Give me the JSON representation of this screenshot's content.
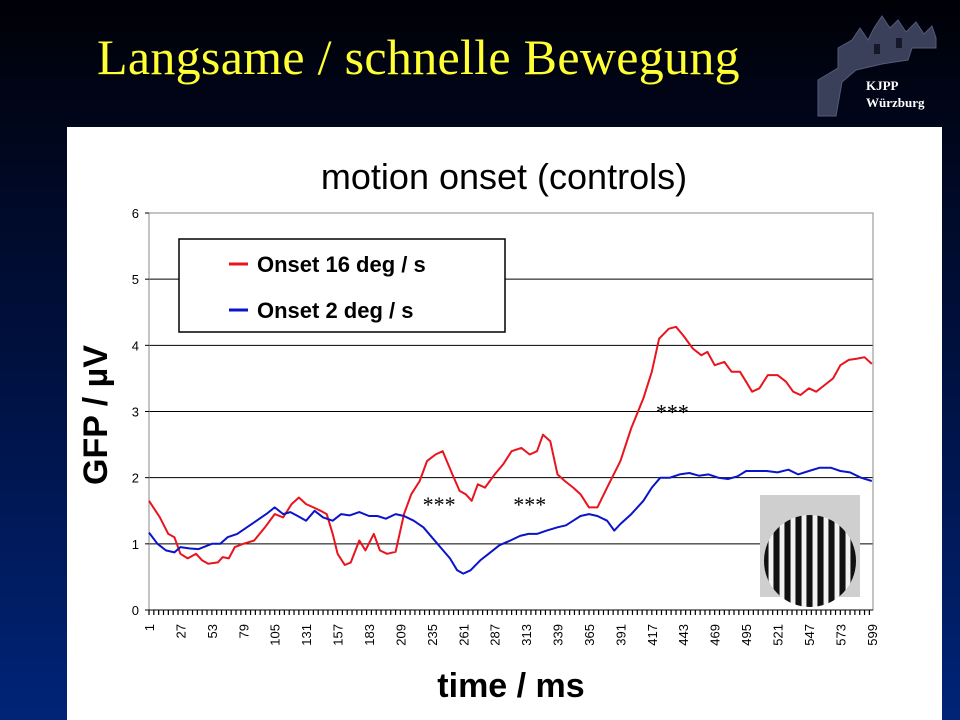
{
  "slide": {
    "title": "Langsame / schnelle Bewegung",
    "logo": {
      "line1": "KJPP",
      "line2": "Würzburg",
      "icon": "castle-logo-icon"
    }
  },
  "chart_data": {
    "type": "line",
    "title": "motion onset (controls)",
    "xlabel": "time / ms",
    "ylabel": "GFP / µV",
    "xlim": [
      1,
      600
    ],
    "ylim": [
      0,
      6
    ],
    "yticks": [
      0,
      1,
      2,
      3,
      4,
      5,
      6
    ],
    "xtick_labels": [
      1,
      27,
      53,
      79,
      105,
      131,
      157,
      183,
      209,
      235,
      261,
      287,
      313,
      339,
      365,
      391,
      417,
      443,
      469,
      495,
      521,
      547,
      573,
      599
    ],
    "grid": "horizontal",
    "legend_position": "top-left",
    "series": [
      {
        "name": "Onset 16 deg / s",
        "color": "#e8141e",
        "points": [
          [
            1,
            1.65
          ],
          [
            10,
            1.4
          ],
          [
            17,
            1.15
          ],
          [
            22,
            1.1
          ],
          [
            27,
            0.85
          ],
          [
            33,
            0.78
          ],
          [
            40,
            0.85
          ],
          [
            45,
            0.75
          ],
          [
            50,
            0.7
          ],
          [
            58,
            0.72
          ],
          [
            62,
            0.8
          ],
          [
            67,
            0.78
          ],
          [
            72,
            0.95
          ],
          [
            79,
            1.0
          ],
          [
            88,
            1.05
          ],
          [
            97,
            1.25
          ],
          [
            105,
            1.45
          ],
          [
            112,
            1.4
          ],
          [
            119,
            1.6
          ],
          [
            125,
            1.7
          ],
          [
            131,
            1.6
          ],
          [
            137,
            1.55
          ],
          [
            143,
            1.5
          ],
          [
            148,
            1.45
          ],
          [
            153,
            1.15
          ],
          [
            157,
            0.85
          ],
          [
            163,
            0.68
          ],
          [
            168,
            0.72
          ],
          [
            175,
            1.05
          ],
          [
            180,
            0.9
          ],
          [
            187,
            1.15
          ],
          [
            192,
            0.9
          ],
          [
            198,
            0.85
          ],
          [
            205,
            0.88
          ],
          [
            212,
            1.45
          ],
          [
            218,
            1.75
          ],
          [
            225,
            1.95
          ],
          [
            231,
            2.25
          ],
          [
            238,
            2.35
          ],
          [
            244,
            2.4
          ],
          [
            252,
            2.05
          ],
          [
            258,
            1.8
          ],
          [
            263,
            1.75
          ],
          [
            268,
            1.65
          ],
          [
            273,
            1.9
          ],
          [
            279,
            1.85
          ],
          [
            287,
            2.05
          ],
          [
            294,
            2.2
          ],
          [
            301,
            2.4
          ],
          [
            309,
            2.45
          ],
          [
            316,
            2.35
          ],
          [
            322,
            2.4
          ],
          [
            327,
            2.65
          ],
          [
            333,
            2.55
          ],
          [
            339,
            2.05
          ],
          [
            345,
            1.95
          ],
          [
            352,
            1.85
          ],
          [
            358,
            1.75
          ],
          [
            365,
            1.55
          ],
          [
            372,
            1.55
          ],
          [
            380,
            1.85
          ],
          [
            391,
            2.25
          ],
          [
            400,
            2.75
          ],
          [
            410,
            3.2
          ],
          [
            417,
            3.6
          ],
          [
            423,
            4.1
          ],
          [
            431,
            4.25
          ],
          [
            437,
            4.28
          ],
          [
            443,
            4.15
          ],
          [
            451,
            3.95
          ],
          [
            458,
            3.85
          ],
          [
            463,
            3.9
          ],
          [
            469,
            3.7
          ],
          [
            477,
            3.75
          ],
          [
            483,
            3.6
          ],
          [
            490,
            3.6
          ],
          [
            495,
            3.45
          ],
          [
            500,
            3.3
          ],
          [
            506,
            3.35
          ],
          [
            513,
            3.55
          ],
          [
            521,
            3.55
          ],
          [
            528,
            3.45
          ],
          [
            534,
            3.3
          ],
          [
            540,
            3.25
          ],
          [
            547,
            3.35
          ],
          [
            553,
            3.3
          ],
          [
            560,
            3.4
          ],
          [
            567,
            3.5
          ],
          [
            573,
            3.7
          ],
          [
            580,
            3.78
          ],
          [
            587,
            3.8
          ],
          [
            593,
            3.82
          ],
          [
            599,
            3.72
          ]
        ]
      },
      {
        "name": "Onset 2 deg / s",
        "color": "#0a14c8",
        "points": [
          [
            1,
            1.17
          ],
          [
            8,
            1.0
          ],
          [
            15,
            0.9
          ],
          [
            22,
            0.87
          ],
          [
            27,
            0.95
          ],
          [
            35,
            0.93
          ],
          [
            42,
            0.92
          ],
          [
            53,
            1.0
          ],
          [
            60,
            1.0
          ],
          [
            66,
            1.1
          ],
          [
            74,
            1.15
          ],
          [
            82,
            1.25
          ],
          [
            90,
            1.35
          ],
          [
            98,
            1.45
          ],
          [
            105,
            1.55
          ],
          [
            112,
            1.45
          ],
          [
            118,
            1.48
          ],
          [
            124,
            1.42
          ],
          [
            131,
            1.35
          ],
          [
            138,
            1.5
          ],
          [
            145,
            1.4
          ],
          [
            153,
            1.35
          ],
          [
            160,
            1.45
          ],
          [
            167,
            1.43
          ],
          [
            175,
            1.48
          ],
          [
            183,
            1.42
          ],
          [
            190,
            1.42
          ],
          [
            197,
            1.38
          ],
          [
            205,
            1.45
          ],
          [
            212,
            1.42
          ],
          [
            220,
            1.35
          ],
          [
            228,
            1.25
          ],
          [
            235,
            1.1
          ],
          [
            242,
            0.95
          ],
          [
            250,
            0.78
          ],
          [
            256,
            0.6
          ],
          [
            261,
            0.55
          ],
          [
            267,
            0.6
          ],
          [
            275,
            0.75
          ],
          [
            282,
            0.85
          ],
          [
            291,
            0.98
          ],
          [
            300,
            1.05
          ],
          [
            308,
            1.12
          ],
          [
            315,
            1.15
          ],
          [
            322,
            1.15
          ],
          [
            330,
            1.2
          ],
          [
            339,
            1.25
          ],
          [
            346,
            1.28
          ],
          [
            352,
            1.35
          ],
          [
            358,
            1.42
          ],
          [
            365,
            1.45
          ],
          [
            372,
            1.42
          ],
          [
            380,
            1.35
          ],
          [
            386,
            1.2
          ],
          [
            391,
            1.3
          ],
          [
            400,
            1.45
          ],
          [
            410,
            1.65
          ],
          [
            417,
            1.85
          ],
          [
            424,
            2.0
          ],
          [
            432,
            2.0
          ],
          [
            440,
            2.05
          ],
          [
            448,
            2.07
          ],
          [
            456,
            2.03
          ],
          [
            464,
            2.05
          ],
          [
            472,
            2.0
          ],
          [
            480,
            1.98
          ],
          [
            488,
            2.02
          ],
          [
            495,
            2.1
          ],
          [
            503,
            2.1
          ],
          [
            512,
            2.1
          ],
          [
            521,
            2.08
          ],
          [
            530,
            2.12
          ],
          [
            538,
            2.05
          ],
          [
            547,
            2.1
          ],
          [
            556,
            2.15
          ],
          [
            565,
            2.15
          ],
          [
            573,
            2.1
          ],
          [
            581,
            2.08
          ],
          [
            590,
            2.0
          ],
          [
            599,
            1.95
          ]
        ]
      }
    ],
    "annotations": [
      {
        "text": "***",
        "x": 241,
        "y": 1.6
      },
      {
        "text": "***",
        "x": 316,
        "y": 1.6
      },
      {
        "text": "***",
        "x": 434,
        "y": 3.0
      }
    ],
    "inset_icon": "vertical-grating-stimulus-icon"
  }
}
